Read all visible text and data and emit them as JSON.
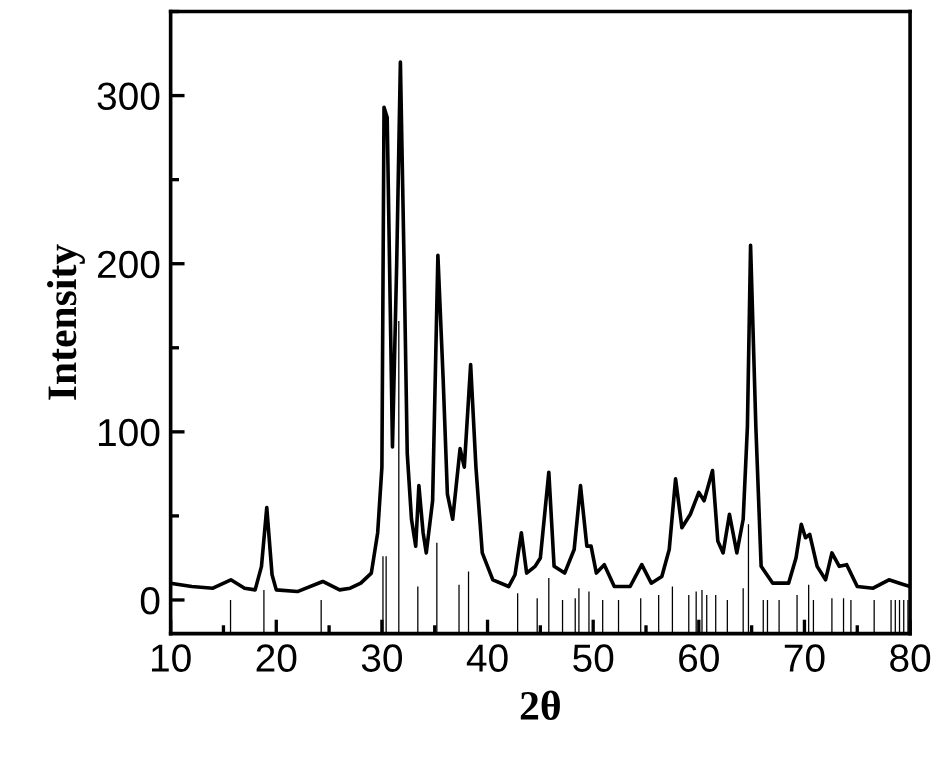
{
  "chart_data": {
    "type": "line",
    "xlabel": "2θ",
    "ylabel": "Intensity",
    "xlim": [
      10,
      80
    ],
    "ylim": [
      -20,
      350
    ],
    "xticks": [
      10,
      20,
      30,
      40,
      50,
      60,
      70,
      80
    ],
    "yticks": [
      0,
      100,
      200,
      300
    ],
    "grid": false,
    "legend": false,
    "marker": "none",
    "line_style": "solid",
    "series": [
      {
        "color": "#000000",
        "x": [
          10,
          12,
          14,
          15.7,
          17,
          18,
          18.6,
          19.1,
          19.6,
          20,
          22,
          24.4,
          26,
          27,
          28,
          29,
          29.6,
          30.0,
          30.2,
          30.5,
          31.0,
          31.4,
          31.75,
          32.1,
          32.4,
          32.8,
          33.2,
          33.5,
          33.9,
          34.2,
          34.8,
          35.3,
          35.8,
          36.2,
          36.7,
          37.4,
          37.8,
          38.4,
          38.9,
          39.5,
          40.5,
          42,
          42.6,
          43.2,
          43.7,
          44.5,
          45.0,
          45.8,
          46.3,
          47.3,
          48.2,
          48.8,
          49.4,
          49.8,
          50.3,
          51.05,
          52,
          53.5,
          54.6,
          55.5,
          56.5,
          57.2,
          57.8,
          58.4,
          59.2,
          60.0,
          60.5,
          61.3,
          61.8,
          62.3,
          62.9,
          63.6,
          64.2,
          64.6,
          64.9,
          65.4,
          65.9,
          67,
          68.5,
          69.2,
          69.7,
          70.1,
          70.5,
          71.2,
          72.0,
          72.6,
          73.3,
          74,
          75,
          76.5,
          78,
          79,
          80
        ],
        "values": [
          10,
          8,
          7,
          12,
          7,
          6,
          20,
          55,
          15,
          6,
          5,
          11,
          6,
          7,
          10,
          16,
          40,
          79,
          293,
          287,
          91,
          200,
          320,
          200,
          87,
          48,
          32,
          68,
          40,
          28,
          59,
          205,
          131,
          63,
          48,
          90,
          79,
          140,
          79,
          28,
          12,
          8,
          15,
          40,
          16,
          20,
          25,
          76,
          20,
          16,
          30,
          68,
          32,
          32,
          16,
          21,
          8,
          8,
          21,
          10,
          14,
          30,
          72,
          43,
          51,
          64,
          59,
          77,
          35,
          28,
          51,
          28,
          48,
          103,
          211,
          103,
          20,
          10,
          10,
          25,
          45,
          37,
          39,
          20,
          12,
          28,
          20,
          21,
          8,
          7,
          12,
          10,
          8
        ]
      },
      {
        "type": "bar",
        "color": "#000000",
        "base": [
          -20,
          -20,
          -20,
          -20,
          -20,
          -20,
          -20,
          -20,
          -20,
          -20,
          -20,
          -20,
          -20,
          -20,
          -20,
          -20,
          -20,
          -20,
          -20,
          -20,
          -20,
          -20,
          -20,
          -20,
          -20,
          -20,
          -20,
          -20,
          -20,
          -20,
          -20,
          -20,
          -20,
          -20,
          -20,
          -20,
          -20,
          -20,
          -20,
          -20,
          -20,
          -20,
          -20,
          -20,
          -20
        ],
        "x": [
          15.67,
          18.83,
          24.25,
          30.1,
          30.4,
          31.6,
          33.4,
          35.2,
          37.3,
          38.2,
          42.85,
          44.7,
          45.8,
          47.1,
          48.3,
          48.65,
          49.6,
          50.9,
          52.4,
          54.5,
          56.2,
          57.5,
          59.05,
          59.75,
          60.3,
          60.75,
          61.6,
          62.7,
          64.2,
          64.7,
          66.1,
          66.5,
          67.6,
          69.3,
          70.4,
          70.85,
          72.6,
          73.7,
          74.4,
          76.6,
          78.2,
          78.6,
          79.0,
          79.4,
          79.8
        ],
        "values": [
          20,
          26,
          20,
          46,
          46,
          186,
          28,
          54,
          29,
          37,
          24,
          21,
          33,
          20,
          21,
          27,
          25,
          20,
          20,
          21,
          23,
          28,
          23,
          25,
          26,
          23,
          23,
          20,
          27,
          65,
          20,
          20,
          20,
          23,
          29,
          20,
          21,
          21,
          20,
          20,
          20,
          20,
          20,
          20,
          20
        ]
      }
    ]
  }
}
